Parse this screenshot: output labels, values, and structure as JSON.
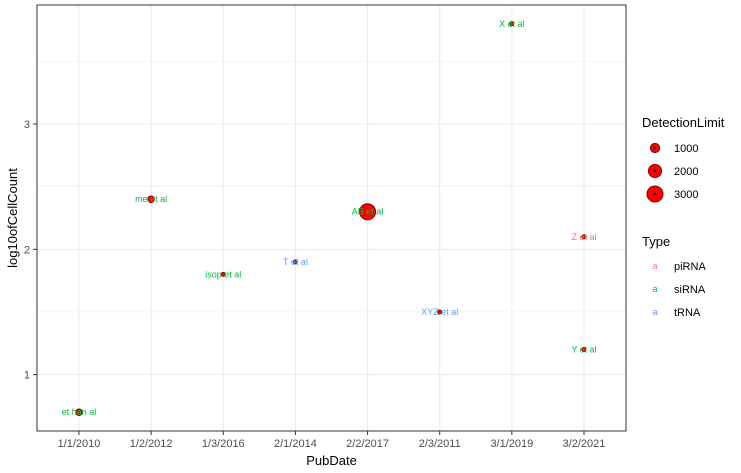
{
  "chart_data": {
    "type": "scatter",
    "xlabel": "PubDate",
    "ylabel": "log10ofCellCount",
    "categories": [
      "1/1/2010",
      "1/2/2012",
      "1/3/2016",
      "2/1/2014",
      "2/2/2017",
      "2/3/2011",
      "3/1/2019",
      "3/2/2021"
    ],
    "y_ticks": [
      1,
      2,
      3
    ],
    "ylim": [
      0.55,
      3.95
    ],
    "grid": true,
    "points": [
      {
        "x": "1/1/2010",
        "y": 0.7,
        "label": "et han al",
        "type": "siRNA",
        "detection_limit": 500
      },
      {
        "x": "1/2/2012",
        "y": 2.4,
        "label": "me et al",
        "type": "siRNA",
        "detection_limit": 500
      },
      {
        "x": "1/3/2016",
        "y": 1.8,
        "label": "isop et al",
        "type": "siRNA",
        "detection_limit": 100
      },
      {
        "x": "2/1/2014",
        "y": 1.9,
        "label": "T et al",
        "type": "tRNA",
        "detection_limit": 100
      },
      {
        "x": "2/2/2017",
        "y": 2.3,
        "label": "AB et al",
        "type": "siRNA",
        "detection_limit": 3000
      },
      {
        "x": "2/3/2011",
        "y": 1.5,
        "label": "XYZ et al",
        "type": "tRNA",
        "detection_limit": 100
      },
      {
        "x": "3/1/2019",
        "y": 3.8,
        "label": "X et al",
        "type": "siRNA",
        "detection_limit": 100
      },
      {
        "x": "3/2/2021",
        "y": 2.1,
        "label": "Z et al",
        "type": "piRNA",
        "detection_limit": 100
      },
      {
        "x": "3/2/2021",
        "y": 1.2,
        "label": "Y et al",
        "type": "siRNA",
        "detection_limit": 100
      }
    ],
    "legend_size": {
      "title": "DetectionLimit",
      "entries": [
        {
          "label": "1000",
          "value": 1000
        },
        {
          "label": "2000",
          "value": 2000
        },
        {
          "label": "3000",
          "value": 3000
        }
      ]
    },
    "legend_color": {
      "title": "Type",
      "key_glyph": "a",
      "entries": [
        {
          "label": "piRNA",
          "color": "#F8766D"
        },
        {
          "label": "siRNA",
          "color": "#00BA38"
        },
        {
          "label": "tRNA",
          "color": "#619CFF"
        }
      ]
    },
    "colors": {
      "point_fill": "#FF0000",
      "point_stroke": "#8B0000",
      "grid": "#EBEBEB",
      "panel_border": "#333333"
    },
    "legend_placement": "right"
  }
}
